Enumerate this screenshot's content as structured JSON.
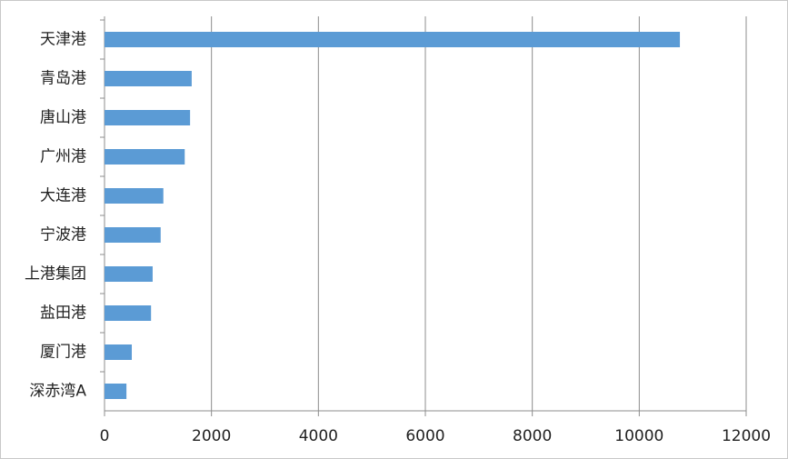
{
  "chart_data": {
    "type": "bar",
    "orientation": "horizontal",
    "categories": [
      "天津港",
      "青岛港",
      "唐山港",
      "广州港",
      "大连港",
      "宁波港",
      "上港集团",
      "盐田港",
      "厦门港",
      "深赤湾A"
    ],
    "values": [
      10760,
      1630,
      1600,
      1500,
      1100,
      1050,
      900,
      870,
      510,
      410
    ],
    "color": "#5b9bd5",
    "xlim": [
      0,
      12000
    ],
    "xticks": [
      0,
      2000,
      4000,
      6000,
      8000,
      10000,
      12000
    ],
    "grid": true
  }
}
